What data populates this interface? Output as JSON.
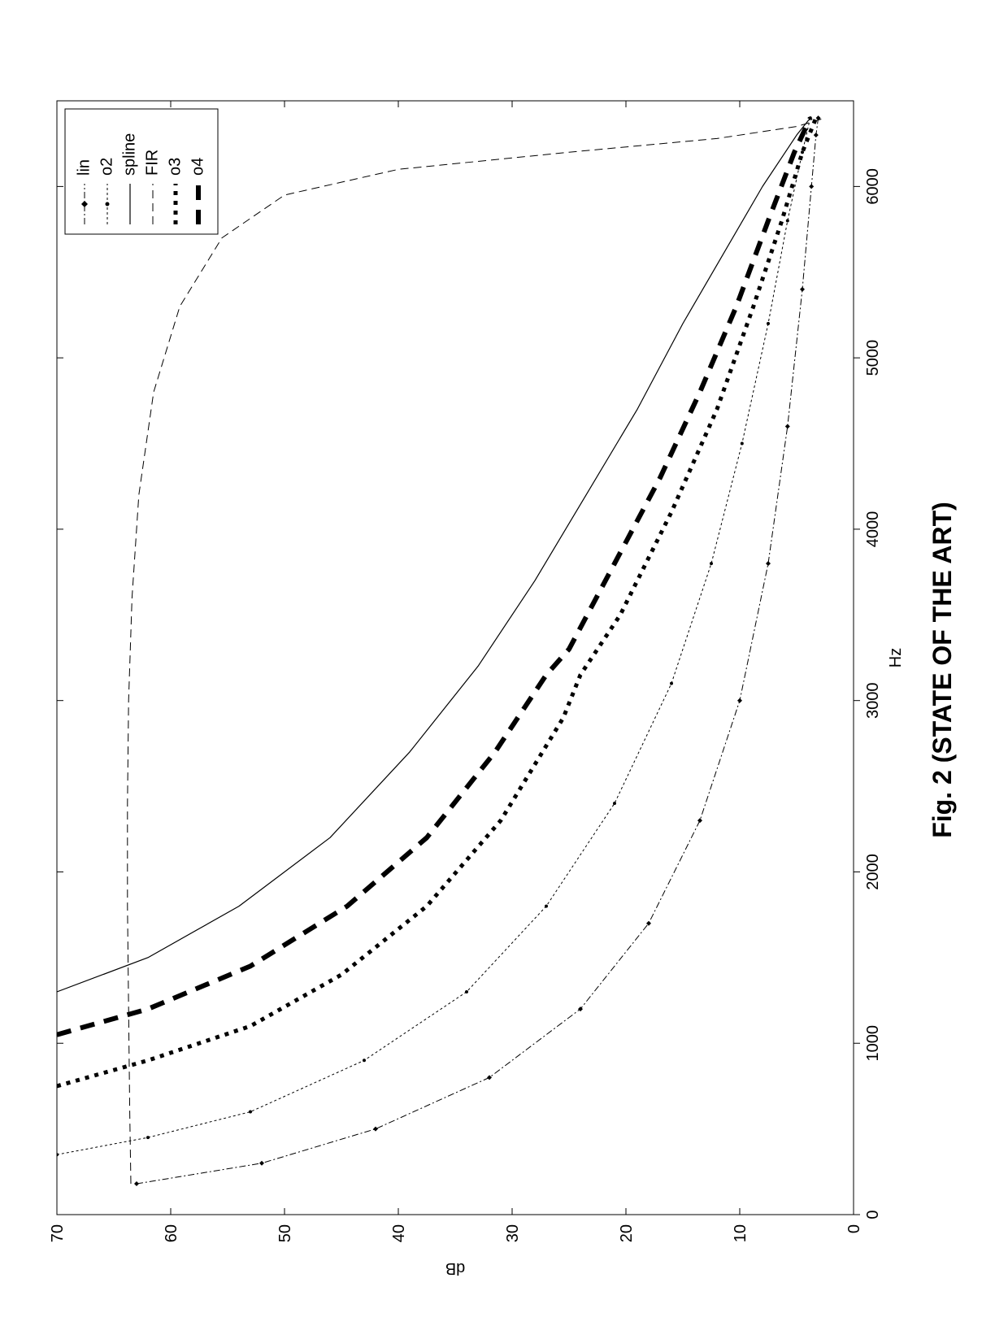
{
  "chart": {
    "type": "line",
    "background_color": "#ffffff",
    "plot_border_color": "#000000",
    "xlabel": "Hz",
    "ylabel": "dB",
    "caption": "Fig. 2  (STATE OF THE ART)",
    "label_fontsize": 20,
    "tick_fontsize": 20,
    "caption_fontsize": 32,
    "xlim": [
      0,
      6500
    ],
    "ylim": [
      0,
      70
    ],
    "xticks": [
      0,
      1000,
      2000,
      3000,
      4000,
      5000,
      6000
    ],
    "yticks": [
      0,
      10,
      20,
      30,
      40,
      50,
      60,
      70
    ],
    "legend": {
      "position": "top-right",
      "border_color": "#000000",
      "background_color": "#ffffff",
      "fontsize": 20,
      "items": [
        {
          "label": "lin",
          "series_key": "lin"
        },
        {
          "label": "o2",
          "series_key": "o2"
        },
        {
          "label": "spline",
          "series_key": "spline"
        },
        {
          "label": "FIR",
          "series_key": "FIR"
        },
        {
          "label": "o3",
          "series_key": "o3"
        },
        {
          "label": "o4",
          "series_key": "o4"
        }
      ]
    },
    "series": {
      "lin": {
        "color": "#000000",
        "line_width": 1,
        "dash": "8,3,2,3",
        "marker": "diamond",
        "marker_size": 3,
        "points": [
          [
            180,
            63
          ],
          [
            300,
            52
          ],
          [
            500,
            42
          ],
          [
            800,
            32
          ],
          [
            1200,
            24
          ],
          [
            1700,
            18
          ],
          [
            2300,
            13.5
          ],
          [
            3000,
            10
          ],
          [
            3800,
            7.5
          ],
          [
            4600,
            5.8
          ],
          [
            5400,
            4.5
          ],
          [
            6000,
            3.7
          ],
          [
            6300,
            3.3
          ],
          [
            6400,
            3.1
          ]
        ]
      },
      "o2": {
        "color": "#000000",
        "line_width": 1,
        "dash": "3,3",
        "marker": "dot",
        "marker_size": 2,
        "points": [
          [
            350,
            70
          ],
          [
            450,
            62
          ],
          [
            600,
            53
          ],
          [
            900,
            43
          ],
          [
            1300,
            34
          ],
          [
            1800,
            27
          ],
          [
            2400,
            21
          ],
          [
            3100,
            16
          ],
          [
            3800,
            12.5
          ],
          [
            4500,
            9.8
          ],
          [
            5200,
            7.5
          ],
          [
            5800,
            5.8
          ],
          [
            6200,
            4.5
          ],
          [
            6400,
            3.8
          ]
        ]
      },
      "spline": {
        "color": "#000000",
        "line_width": 1.2,
        "dash": "none",
        "marker": "none",
        "points": [
          [
            1300,
            70
          ],
          [
            1500,
            62
          ],
          [
            1800,
            54
          ],
          [
            2200,
            46
          ],
          [
            2700,
            39
          ],
          [
            3200,
            33
          ],
          [
            3700,
            28
          ],
          [
            4200,
            23.5
          ],
          [
            4700,
            19
          ],
          [
            5200,
            15
          ],
          [
            5600,
            11.5
          ],
          [
            6000,
            8
          ],
          [
            6300,
            5
          ],
          [
            6400,
            3.8
          ]
        ]
      },
      "FIR": {
        "color": "#000000",
        "line_width": 1,
        "dash": "10,6",
        "marker": "none",
        "points": [
          [
            180,
            63.5
          ],
          [
            600,
            63.6
          ],
          [
            1200,
            63.7
          ],
          [
            1800,
            63.8
          ],
          [
            2400,
            63.8
          ],
          [
            3000,
            63.7
          ],
          [
            3600,
            63.4
          ],
          [
            4200,
            62.8
          ],
          [
            4800,
            61.5
          ],
          [
            5300,
            59.2
          ],
          [
            5700,
            55.5
          ],
          [
            5950,
            50
          ],
          [
            6100,
            40
          ],
          [
            6200,
            25
          ],
          [
            6280,
            12
          ],
          [
            6350,
            5
          ],
          [
            6400,
            2.5
          ]
        ]
      },
      "o3": {
        "color": "#000000",
        "line_width": 5,
        "dash": "5,7",
        "marker": "none",
        "points": [
          [
            750,
            70
          ],
          [
            900,
            62
          ],
          [
            1100,
            53
          ],
          [
            1400,
            45
          ],
          [
            1800,
            37.5
          ],
          [
            2300,
            31
          ],
          [
            2900,
            25.5
          ],
          [
            3150,
            24
          ],
          [
            3500,
            20.5
          ],
          [
            4100,
            16
          ],
          [
            4700,
            12
          ],
          [
            5300,
            8.8
          ],
          [
            5800,
            6.3
          ],
          [
            6200,
            4.5
          ],
          [
            6400,
            3.3
          ]
        ]
      },
      "o4": {
        "color": "#000000",
        "line_width": 6,
        "dash": "18,12",
        "marker": "none",
        "points": [
          [
            1050,
            70
          ],
          [
            1200,
            62
          ],
          [
            1450,
            53
          ],
          [
            1800,
            44.5
          ],
          [
            2200,
            37.5
          ],
          [
            2700,
            31.5
          ],
          [
            3150,
            27
          ],
          [
            3300,
            25
          ],
          [
            3800,
            21
          ],
          [
            4300,
            17
          ],
          [
            4800,
            13.5
          ],
          [
            5300,
            10.3
          ],
          [
            5800,
            7.5
          ],
          [
            6200,
            5.2
          ],
          [
            6400,
            3.8
          ]
        ]
      }
    }
  }
}
